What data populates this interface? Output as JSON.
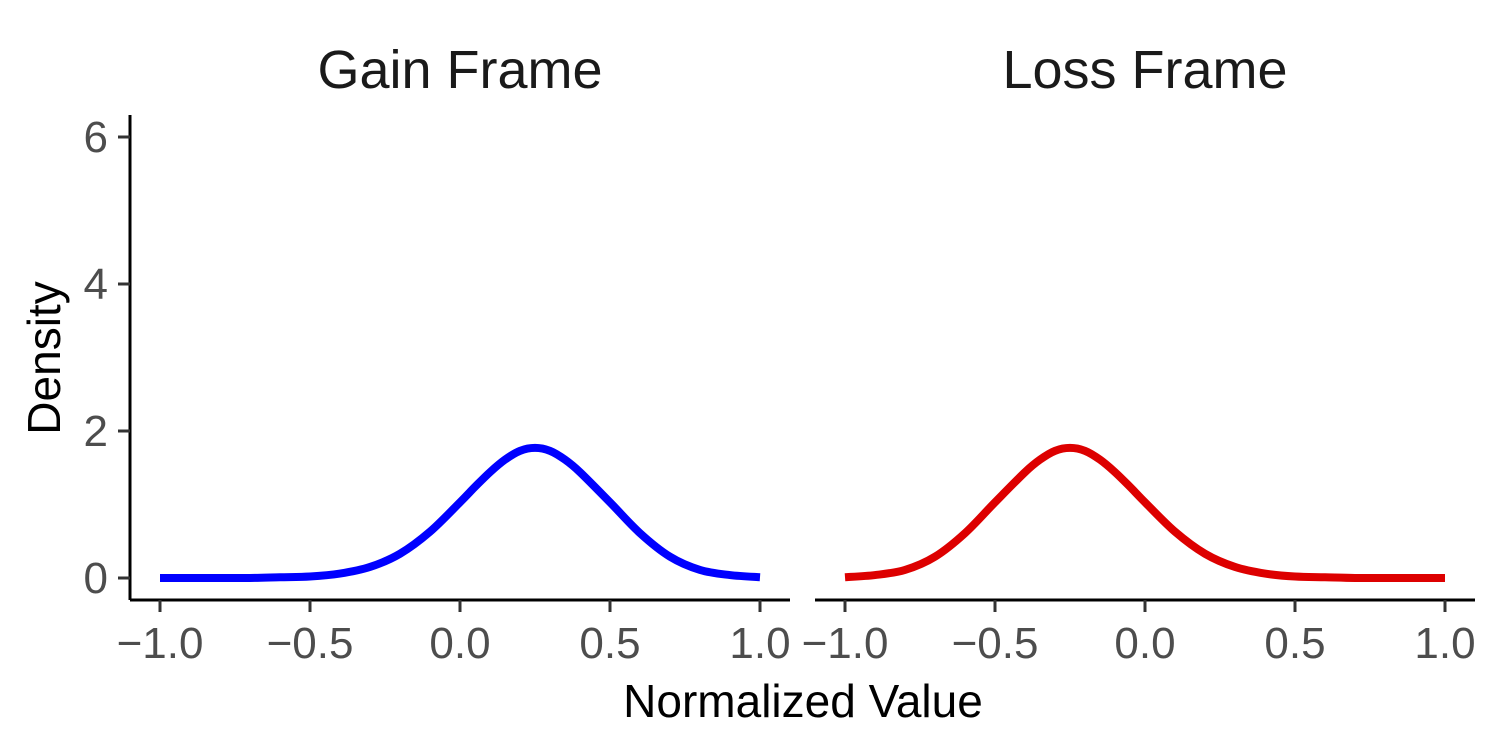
{
  "chart_data": {
    "type": "line",
    "xlabel": "Normalized Value",
    "ylabel": "Density",
    "ylim": [
      0,
      6
    ],
    "xlim": [
      -1.0,
      1.0
    ],
    "y_ticks": [
      0,
      2,
      4,
      6
    ],
    "x_ticks": [
      -1.0,
      -0.5,
      0.0,
      0.5,
      1.0
    ],
    "x_tick_labels": [
      "−1.0",
      "−0.5",
      "0.0",
      "0.5",
      "1.0"
    ],
    "grid": false,
    "legend": "none",
    "facets": [
      {
        "title": "Gain Frame",
        "color": "#0000ff",
        "series": [
          {
            "x": [
              -1.0,
              -0.9,
              -0.8,
              -0.7,
              -0.6,
              -0.5,
              -0.4,
              -0.3,
              -0.2,
              -0.1,
              0.0,
              0.05,
              0.1,
              0.15,
              0.2,
              0.25,
              0.3,
              0.35,
              0.4,
              0.5,
              0.6,
              0.7,
              0.8,
              0.9,
              1.0
            ],
            "values": [
              0.0,
              0.0,
              0.0,
              0.0,
              0.01,
              0.02,
              0.06,
              0.15,
              0.33,
              0.63,
              1.03,
              1.24,
              1.44,
              1.61,
              1.73,
              1.77,
              1.73,
              1.61,
              1.44,
              1.03,
              0.61,
              0.29,
              0.11,
              0.04,
              0.01
            ]
          }
        ]
      },
      {
        "title": "Loss Frame",
        "color": "#dd0000",
        "series": [
          {
            "x": [
              -1.0,
              -0.9,
              -0.8,
              -0.7,
              -0.6,
              -0.5,
              -0.4,
              -0.35,
              -0.3,
              -0.25,
              -0.2,
              -0.15,
              -0.1,
              -0.05,
              0.0,
              0.1,
              0.2,
              0.3,
              0.4,
              0.5,
              0.6,
              0.7,
              0.8,
              0.9,
              1.0
            ],
            "values": [
              0.01,
              0.04,
              0.11,
              0.29,
              0.61,
              1.03,
              1.44,
              1.61,
              1.73,
              1.77,
              1.73,
              1.61,
              1.44,
              1.24,
              1.03,
              0.63,
              0.33,
              0.15,
              0.06,
              0.02,
              0.01,
              0.0,
              0.0,
              0.0,
              0.0
            ]
          }
        ]
      }
    ]
  }
}
